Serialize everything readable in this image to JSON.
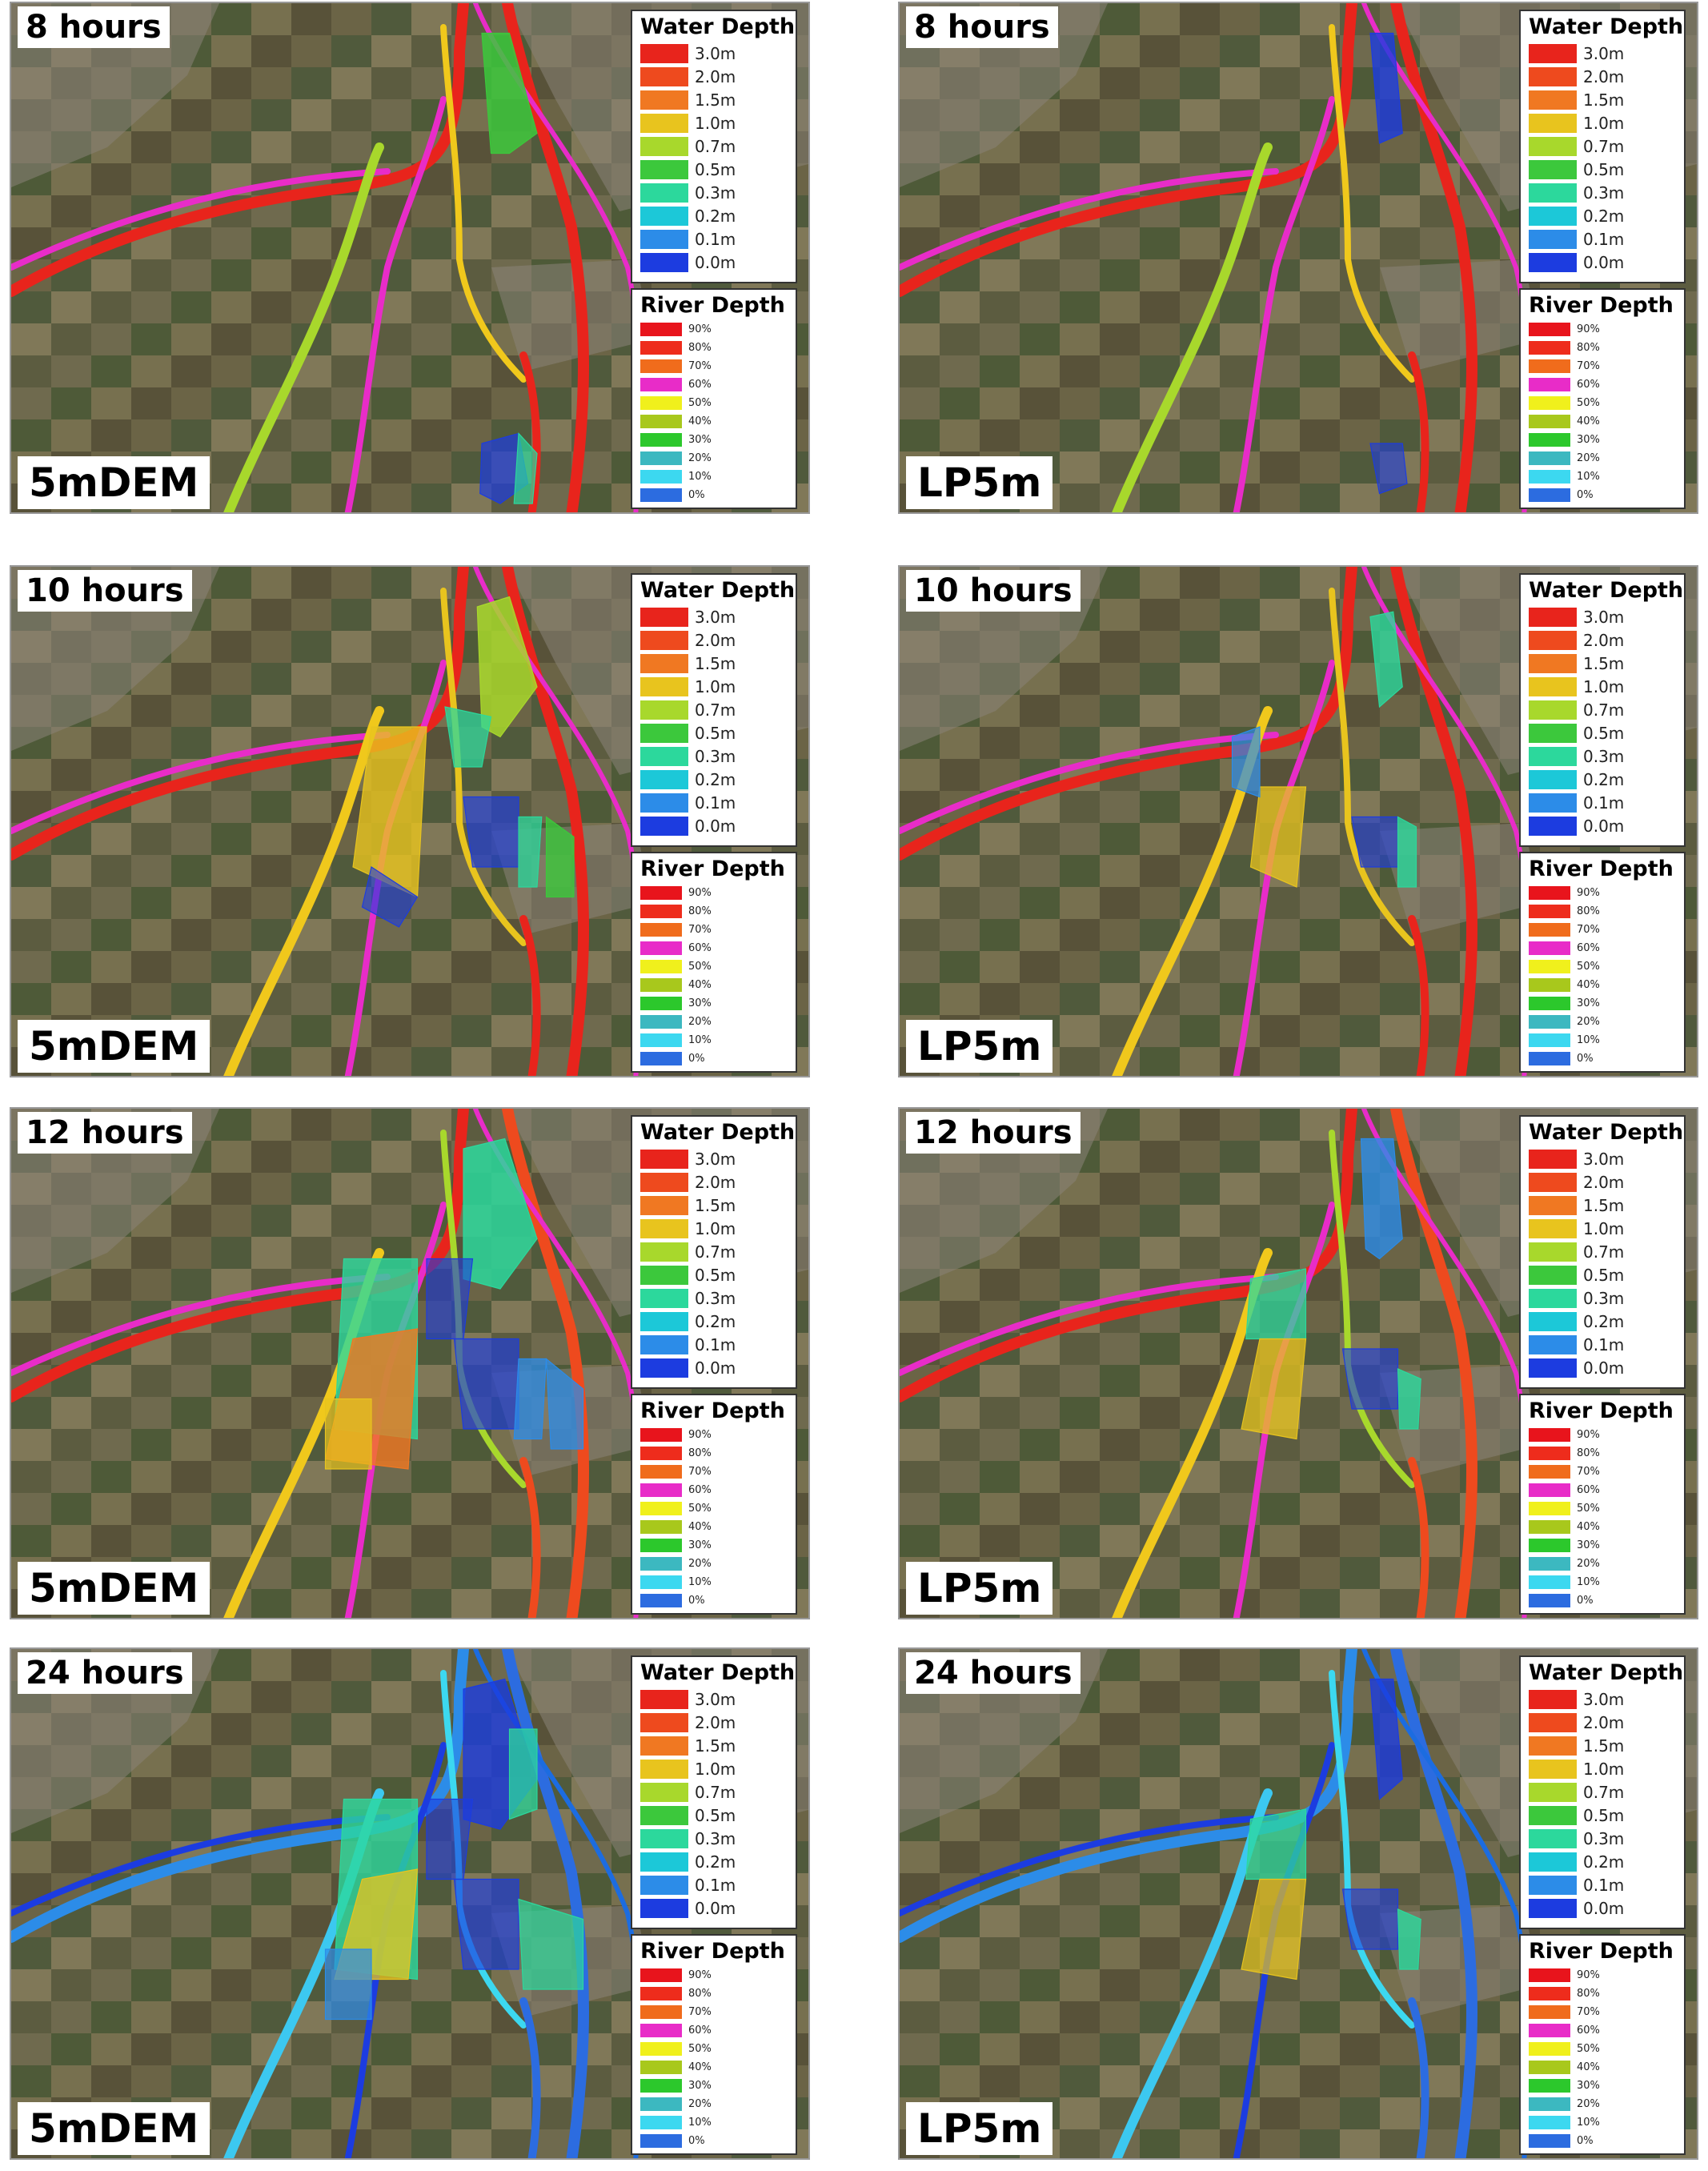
{
  "panels": [
    {
      "time": "8 hours",
      "model": "5mDEM",
      "flood": "8h-dem"
    },
    {
      "time": "8 hours",
      "model": "LP5m",
      "flood": "8h-lp"
    },
    {
      "time": "10 hours",
      "model": "5mDEM",
      "flood": "10h-dem"
    },
    {
      "time": "10 hours",
      "model": "LP5m",
      "flood": "10h-lp"
    },
    {
      "time": "12 hours",
      "model": "5mDEM",
      "flood": "12h-dem"
    },
    {
      "time": "12 hours",
      "model": "LP5m",
      "flood": "12h-lp"
    },
    {
      "time": "24 hours",
      "model": "5mDEM",
      "flood": "24h-dem"
    },
    {
      "time": "24 hours",
      "model": "LP5m",
      "flood": "24h-lp"
    }
  ],
  "water_depth_legend": {
    "title": "Water Depth",
    "items": [
      {
        "label": "3.0m",
        "color": "#e8241c"
      },
      {
        "label": "2.0m",
        "color": "#ee4a1e"
      },
      {
        "label": "1.5m",
        "color": "#f07822"
      },
      {
        "label": "1.0m",
        "color": "#e8c41e"
      },
      {
        "label": "0.7m",
        "color": "#a8d82c"
      },
      {
        "label": "0.5m",
        "color": "#3cc83c"
      },
      {
        "label": "0.3m",
        "color": "#2cd89c"
      },
      {
        "label": "0.2m",
        "color": "#1cc8d8"
      },
      {
        "label": "0.1m",
        "color": "#2c8ce8"
      },
      {
        "label": "0.0m",
        "color": "#1c3ce0"
      }
    ]
  },
  "river_depth_legend": {
    "title": "River Depth",
    "items": [
      {
        "label": "90%",
        "color": "#e8141c"
      },
      {
        "label": "80%",
        "color": "#ee2c1c"
      },
      {
        "label": "70%",
        "color": "#f06c1c"
      },
      {
        "label": "60%",
        "color": "#e82cc8"
      },
      {
        "label": "50%",
        "color": "#f0f01c"
      },
      {
        "label": "40%",
        "color": "#a8c81c"
      },
      {
        "label": "30%",
        "color": "#2cc82c"
      },
      {
        "label": "20%",
        "color": "#3cb8c0"
      },
      {
        "label": "10%",
        "color": "#3cd8f0"
      },
      {
        "label": "0%",
        "color": "#2c6ce0"
      }
    ]
  }
}
